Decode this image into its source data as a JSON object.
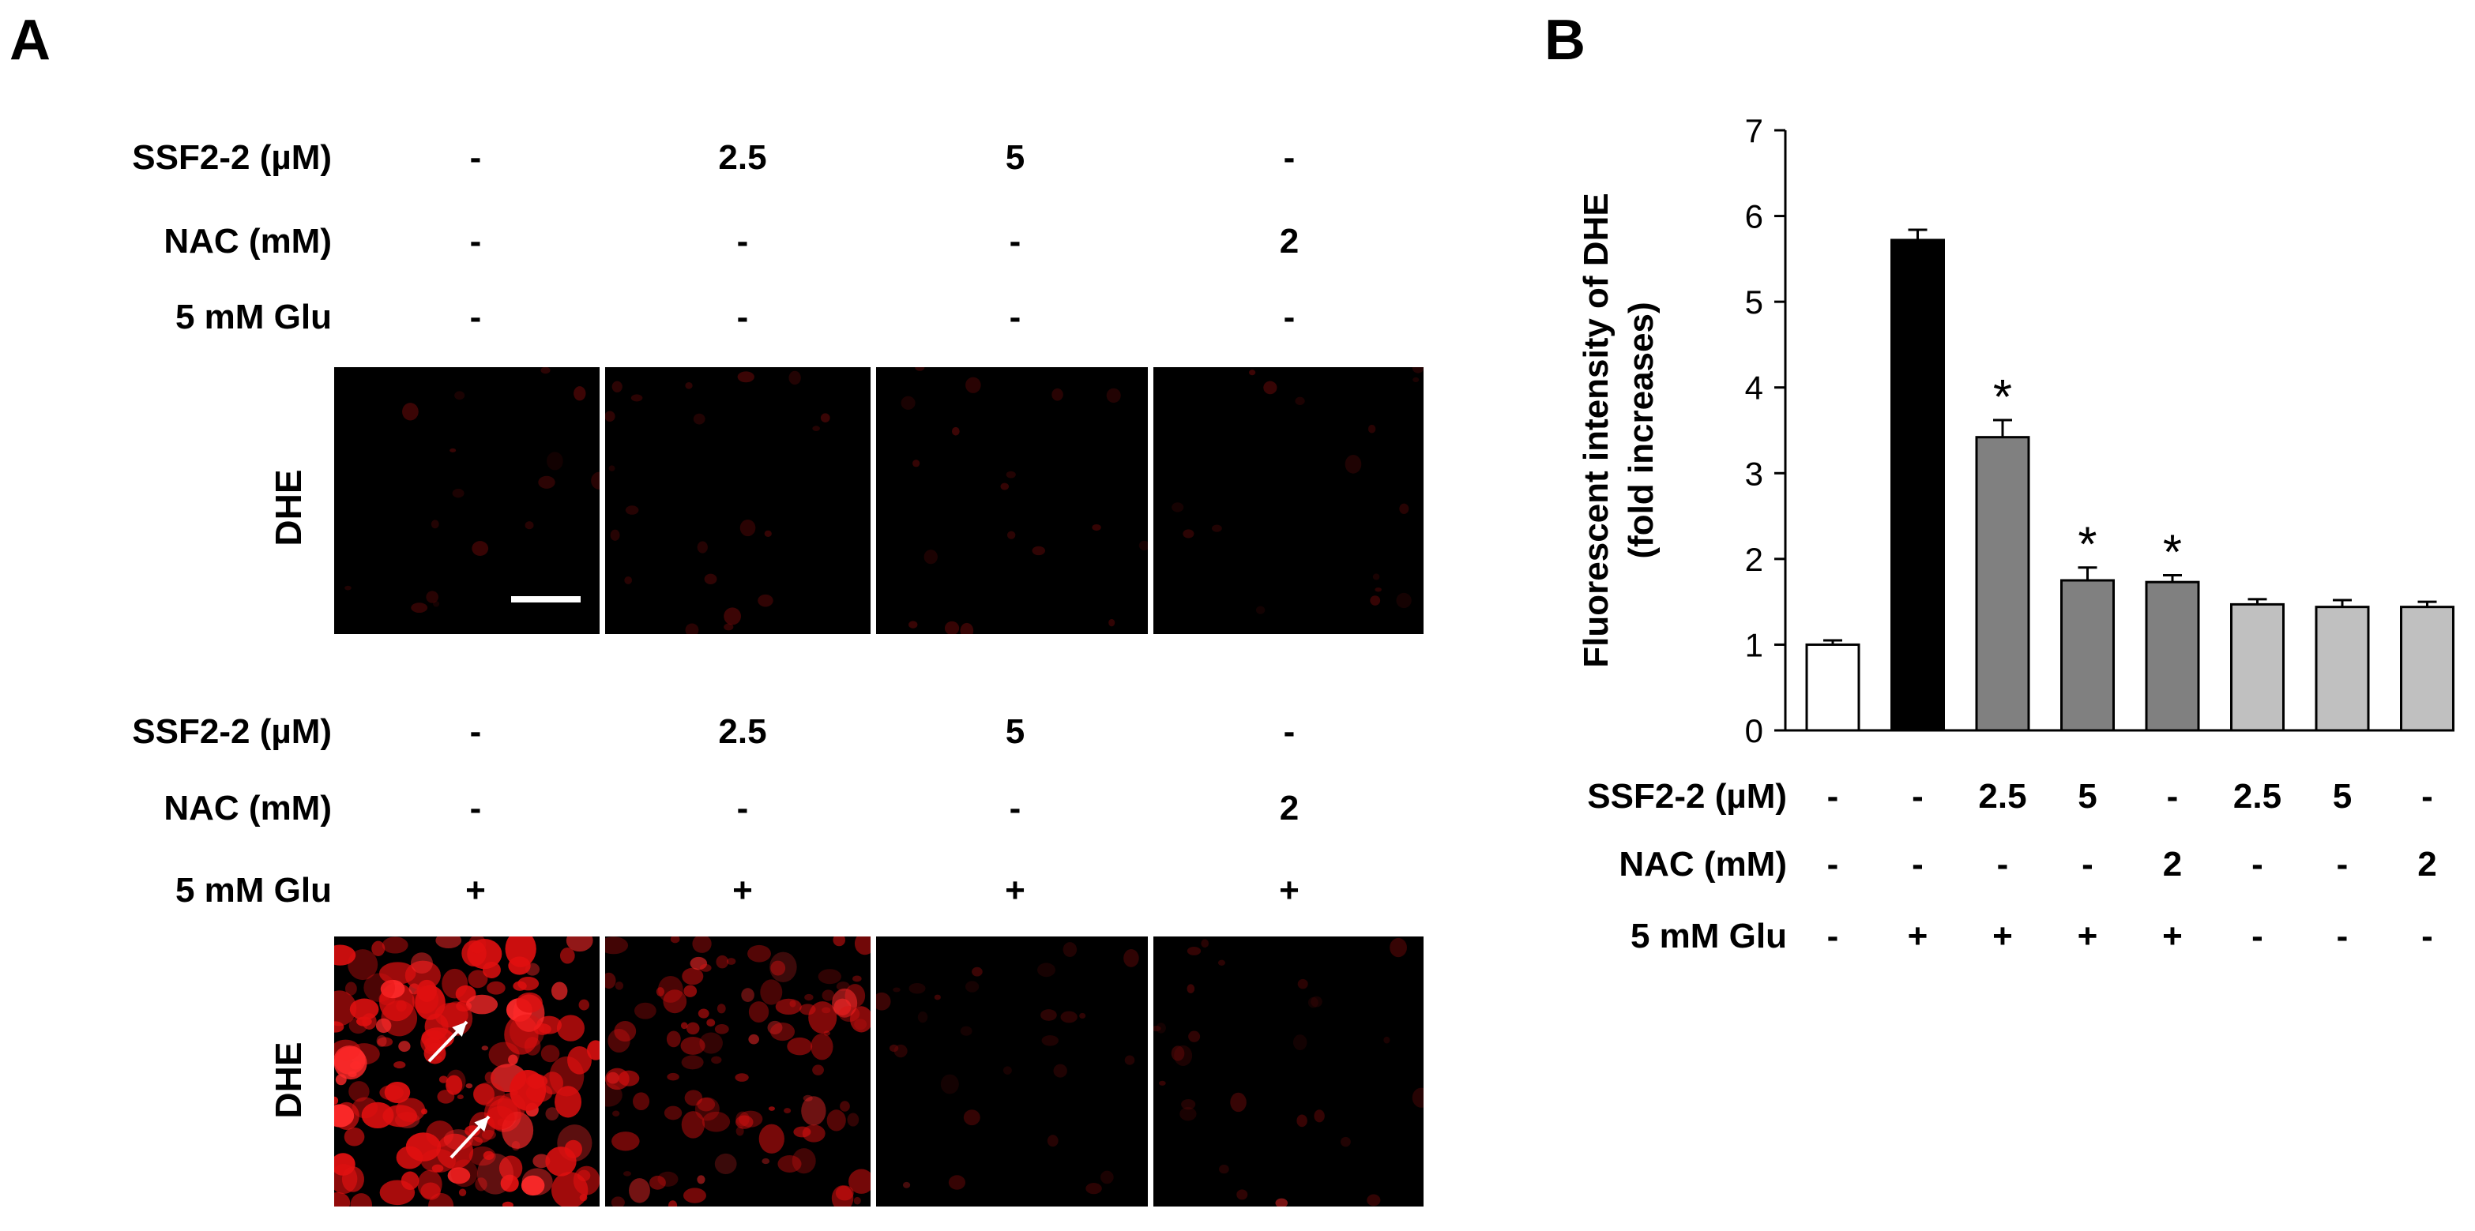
{
  "panel_a": {
    "letter": "A",
    "row_labels": {
      "ssf": "SSF2-2 (µM)",
      "nac": "NAC (mM)",
      "glu": "5 mM Glu"
    },
    "image_label": "DHE",
    "top_group": {
      "ssf": [
        "-",
        "2.5",
        "5",
        "-"
      ],
      "nac": [
        "-",
        "-",
        "-",
        "2"
      ],
      "glu": [
        "-",
        "-",
        "-",
        "-"
      ],
      "fluorescence_level": [
        0.05,
        0.08,
        0.06,
        0.05
      ]
    },
    "bottom_group": {
      "ssf": [
        "-",
        "2.5",
        "5",
        "-"
      ],
      "nac": [
        "-",
        "-",
        "-",
        "2"
      ],
      "glu": [
        "+",
        "+",
        "+",
        "+"
      ],
      "fluorescence_level": [
        0.95,
        0.6,
        0.12,
        0.12
      ]
    },
    "colors": {
      "background": "#000000",
      "signal": "#ff1a1a",
      "arrow": "#ffffff",
      "scale_bar": "#ffffff"
    }
  },
  "panel_b": {
    "letter": "B",
    "row_labels": {
      "ssf": "SSF2-2 (µM)",
      "nac": "NAC (mM)",
      "glu": "5 mM Glu"
    },
    "conditions": {
      "ssf": [
        "-",
        "-",
        "2.5",
        "5",
        "-",
        "2.5",
        "5",
        "-"
      ],
      "nac": [
        "-",
        "-",
        "-",
        "-",
        "2",
        "-",
        "-",
        "2"
      ],
      "glu": [
        "-",
        "+",
        "+",
        "+",
        "+",
        "-",
        "-",
        "-"
      ]
    }
  },
  "chart_data": {
    "type": "bar",
    "title": "",
    "ylabel_line1": "Fluorescent intensity of DHE",
    "ylabel_line2": "(fold increases)",
    "xlabel": "",
    "ylim": [
      0,
      7
    ],
    "yticks": [
      0,
      1,
      2,
      3,
      4,
      5,
      6,
      7
    ],
    "values": [
      1.0,
      5.72,
      3.42,
      1.75,
      1.73,
      1.47,
      1.44,
      1.44
    ],
    "errors": [
      0.05,
      0.12,
      0.2,
      0.15,
      0.08,
      0.06,
      0.08,
      0.06
    ],
    "significance": [
      "",
      "",
      "*",
      "*",
      "*",
      "",
      "",
      ""
    ],
    "bar_colors": [
      "#ffffff",
      "#000000",
      "#808080",
      "#808080",
      "#808080",
      "#c0c0c0",
      "#c0c0c0",
      "#c0c0c0"
    ],
    "grid": false,
    "legend": "none"
  }
}
